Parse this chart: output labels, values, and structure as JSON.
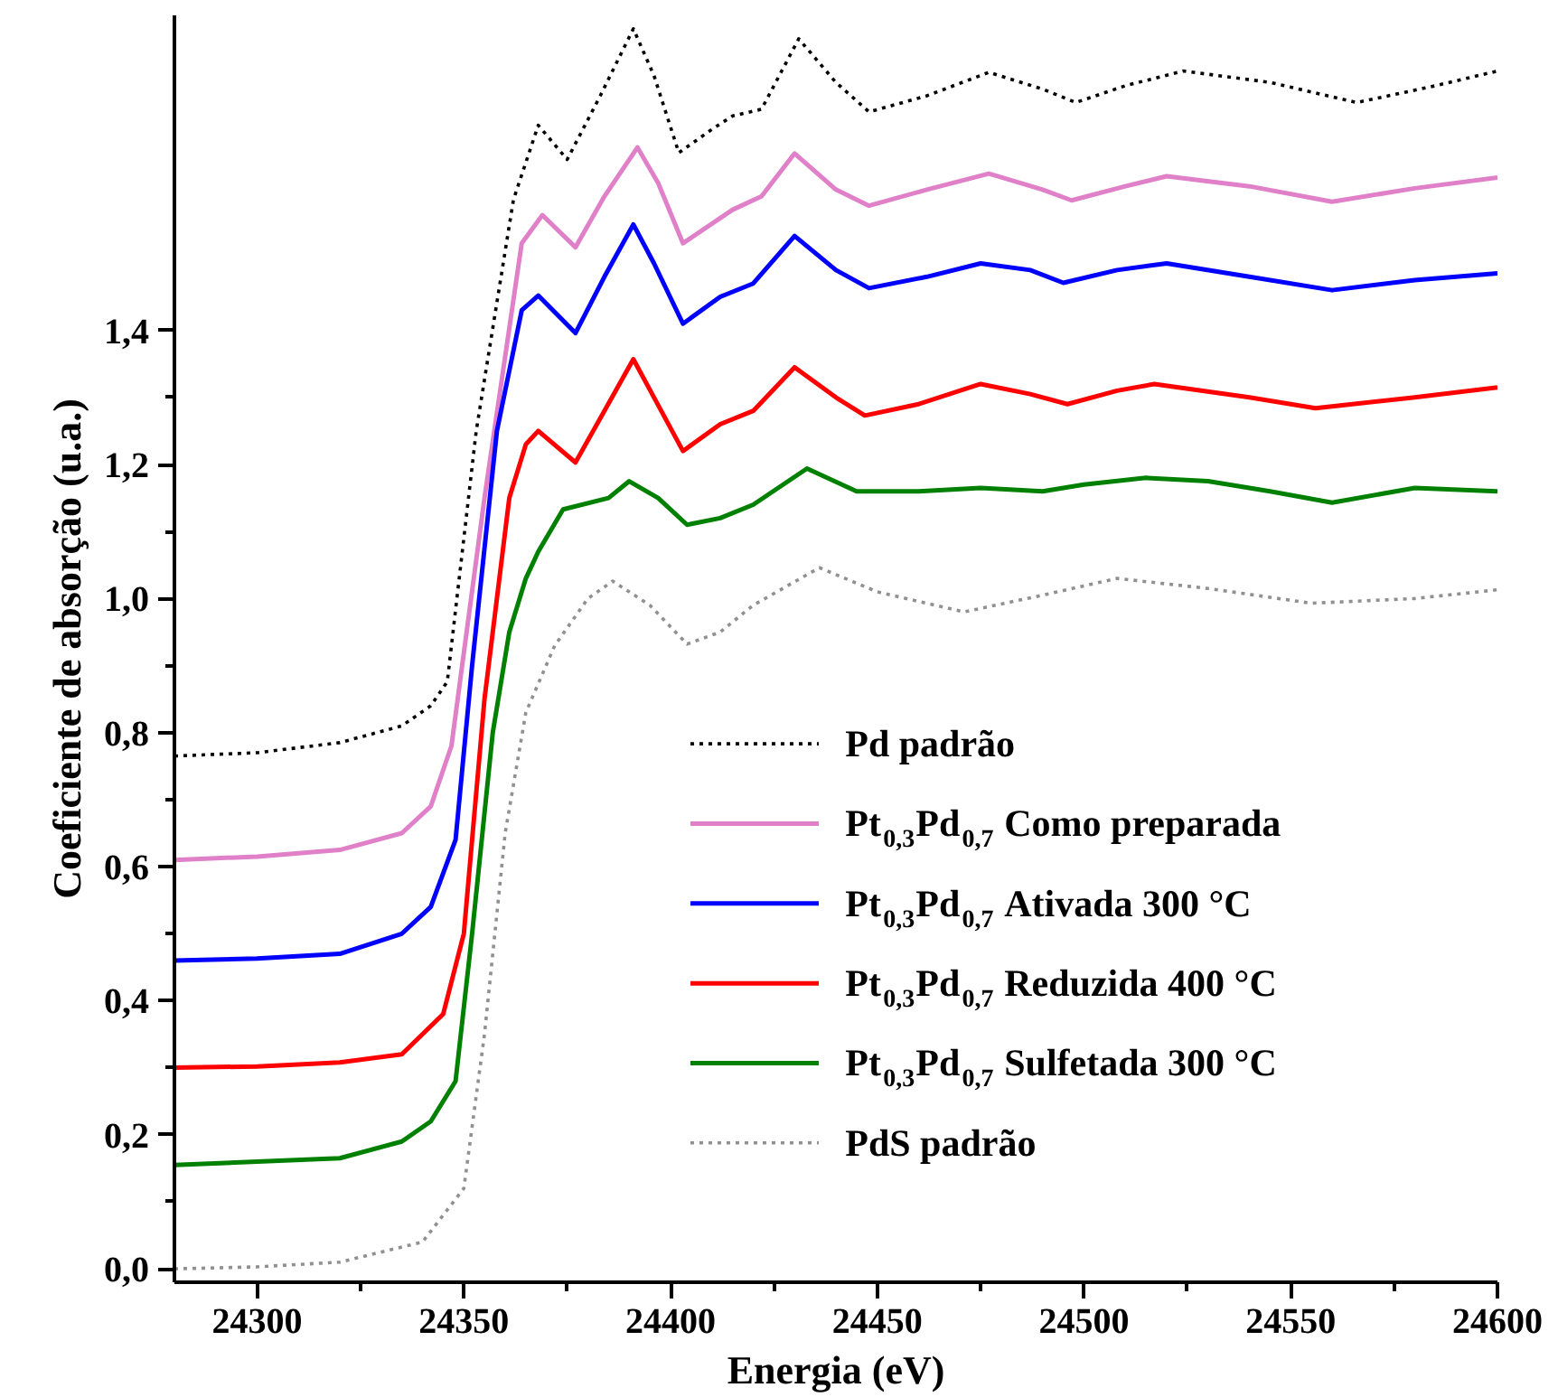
{
  "chart_data": {
    "type": "line",
    "xlabel": "Energia (eV)",
    "ylabel": "Coeficiente de absorção (u.a.)",
    "xlim": [
      24280,
      24600
    ],
    "ylim": [
      -0.02,
      1.87
    ],
    "xticks": [
      24300,
      24350,
      24400,
      24450,
      24500,
      24550,
      24600
    ],
    "yticks": [
      {
        "value": 0.0,
        "label": "0,0"
      },
      {
        "value": 0.2,
        "label": "0,2"
      },
      {
        "value": 0.4,
        "label": "0,4"
      },
      {
        "value": 0.6,
        "label": "0,6"
      },
      {
        "value": 0.8,
        "label": "0,8"
      },
      {
        "value": 1.0,
        "label": "1,0"
      },
      {
        "value": 1.2,
        "label": "1,2"
      },
      {
        "value": 1.4,
        "label": "1,4"
      }
    ],
    "grid": false,
    "legend": "bottom right",
    "series": [
      {
        "name": "Pd padrão",
        "color": "#000000",
        "line_style": "dotted",
        "x": [
          24280,
          24300,
          24320,
          24335,
          24342,
          24346,
          24353,
          24362,
          24368,
          24375,
          24383,
          24391,
          24396,
          24402,
          24410,
          24415,
          24422,
          24431,
          24440,
          24448,
          24462,
          24477,
          24490,
          24498,
          24510,
          24524,
          24545,
          24566,
          24585,
          24600
        ],
        "values": [
          0.765,
          0.77,
          0.785,
          0.81,
          0.84,
          0.876,
          1.25,
          1.595,
          1.706,
          1.655,
          1.75,
          1.85,
          1.78,
          1.665,
          1.7,
          1.72,
          1.73,
          1.835,
          1.77,
          1.726,
          1.75,
          1.785,
          1.76,
          1.74,
          1.765,
          1.787,
          1.77,
          1.74,
          1.765,
          1.787
        ]
      },
      {
        "name": "Pt$_{0,3}$Pd$_{0,7}$ Como preparada",
        "color": "#e080c8",
        "line_style": "solid",
        "x": [
          24280,
          24300,
          24320,
          24335,
          24342,
          24347,
          24355,
          24364,
          24369,
          24377,
          24384,
          24392,
          24397,
          24403,
          24415,
          24422,
          24430,
          24440,
          24448,
          24462,
          24477,
          24490,
          24497,
          24510,
          24520,
          24540,
          24560,
          24580,
          24600
        ],
        "values": [
          0.61,
          0.615,
          0.625,
          0.65,
          0.69,
          0.78,
          1.15,
          1.53,
          1.572,
          1.524,
          1.6,
          1.673,
          1.62,
          1.53,
          1.58,
          1.6,
          1.664,
          1.61,
          1.586,
          1.61,
          1.634,
          1.61,
          1.594,
          1.615,
          1.63,
          1.615,
          1.592,
          1.612,
          1.628
        ]
      },
      {
        "name": "Pt$_{0,3}$Pd$_{0,7}$ Ativada 300 °C",
        "color": "#0000ff",
        "line_style": "solid",
        "x": [
          24280,
          24300,
          24320,
          24335,
          24342,
          24348,
          24352,
          24358,
          24364,
          24368,
          24377,
          24384,
          24391,
          24396,
          24403,
          24412,
          24420,
          24430,
          24440,
          24448,
          24462,
          24475,
          24487,
          24495,
          24508,
          24520,
          24540,
          24560,
          24580,
          24600
        ],
        "values": [
          0.46,
          0.463,
          0.47,
          0.5,
          0.54,
          0.64,
          0.9,
          1.25,
          1.43,
          1.452,
          1.396,
          1.48,
          1.558,
          1.5,
          1.41,
          1.45,
          1.47,
          1.541,
          1.49,
          1.463,
          1.48,
          1.5,
          1.49,
          1.471,
          1.49,
          1.5,
          1.48,
          1.46,
          1.475,
          1.485
        ]
      },
      {
        "name": "Pt$_{0,3}$Pd$_{0,7}$ Reduzida 400 °C",
        "color": "#ff0000",
        "line_style": "solid",
        "x": [
          24280,
          24300,
          24320,
          24335,
          24345,
          24350,
          24355,
          24361,
          24365,
          24368,
          24377,
          24384,
          24391,
          24396,
          24403,
          24412,
          24420,
          24430,
          24440,
          24447,
          24460,
          24475,
          24487,
          24496,
          24508,
          24517,
          24540,
          24556,
          24580,
          24600
        ],
        "values": [
          0.3,
          0.302,
          0.308,
          0.32,
          0.38,
          0.5,
          0.85,
          1.15,
          1.23,
          1.25,
          1.203,
          1.28,
          1.357,
          1.3,
          1.22,
          1.26,
          1.28,
          1.345,
          1.3,
          1.273,
          1.29,
          1.32,
          1.305,
          1.29,
          1.31,
          1.32,
          1.3,
          1.284,
          1.3,
          1.315
        ]
      },
      {
        "name": "Pt$_{0,3}$Pd$_{0,7}$ Sulfetada 300 °C",
        "color": "#008000",
        "line_style": "solid",
        "x": [
          24280,
          24300,
          24320,
          24335,
          24342,
          24348,
          24352,
          24357,
          24361,
          24365,
          24368,
          24374,
          24385,
          24390,
          24397,
          24404,
          24412,
          24420,
          24433,
          24445,
          24460,
          24475,
          24490,
          24500,
          24515,
          24530,
          24545,
          24560,
          24580,
          24600
        ],
        "values": [
          0.155,
          0.16,
          0.165,
          0.19,
          0.22,
          0.28,
          0.5,
          0.8,
          0.95,
          1.03,
          1.07,
          1.133,
          1.15,
          1.175,
          1.15,
          1.11,
          1.12,
          1.14,
          1.194,
          1.16,
          1.16,
          1.165,
          1.16,
          1.17,
          1.18,
          1.175,
          1.16,
          1.143,
          1.165,
          1.16
        ]
      },
      {
        "name": "PdS padrão",
        "color": "#909090",
        "line_style": "dotted",
        "x": [
          24280,
          24300,
          24320,
          24340,
          24350,
          24355,
          24360,
          24365,
          24372,
          24380,
          24386,
          24395,
          24404,
          24412,
          24420,
          24436,
          24450,
          24471,
          24490,
          24508,
          24530,
          24555,
          24580,
          24600
        ],
        "values": [
          0.0,
          0.003,
          0.01,
          0.04,
          0.12,
          0.35,
          0.65,
          0.83,
          0.93,
          1.0,
          1.026,
          0.99,
          0.932,
          0.95,
          0.99,
          1.046,
          1.01,
          0.98,
          1.005,
          1.03,
          1.015,
          0.993,
          1.0,
          1.013
        ]
      }
    ]
  }
}
